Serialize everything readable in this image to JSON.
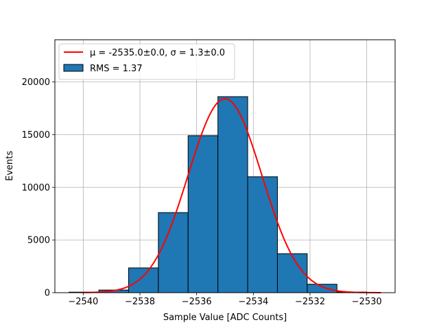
{
  "chart_data": {
    "type": "bar",
    "xlabel": "Sample Value [ADC Counts]",
    "ylabel": "Events",
    "xlim": [
      -2541,
      -2529
    ],
    "ylim": [
      0,
      24000
    ],
    "xticks": [
      -2540,
      -2538,
      -2536,
      -2534,
      -2532,
      -2530
    ],
    "xtick_labels": [
      "−2540",
      "−2538",
      "−2536",
      "−2534",
      "−2532",
      "−2530"
    ],
    "yticks": [
      0,
      5000,
      10000,
      15000,
      20000
    ],
    "ytick_labels": [
      "0",
      "5000",
      "10000",
      "15000",
      "20000"
    ],
    "grid": true,
    "legend_position": "top-left",
    "histogram": {
      "name": "RMS = 1.37",
      "color": "#1f77b4",
      "edge_color": "#000000",
      "bin_edges": [
        -2540.5,
        -2539.45,
        -2538.4,
        -2537.35,
        -2536.3,
        -2535.25,
        -2534.2,
        -2533.15,
        -2532.1,
        -2531.05,
        -2530.0
      ],
      "counts": [
        50,
        250,
        2350,
        7600,
        14900,
        18600,
        11000,
        3700,
        800,
        60
      ]
    },
    "fit": {
      "name": "μ = -2535.0±0.0, σ = 1.3±0.0",
      "color": "#ff0000",
      "mu": -2535.0,
      "sigma": 1.3,
      "amplitude": 18400,
      "x_range": [
        -2540,
        -2529.5
      ]
    }
  }
}
